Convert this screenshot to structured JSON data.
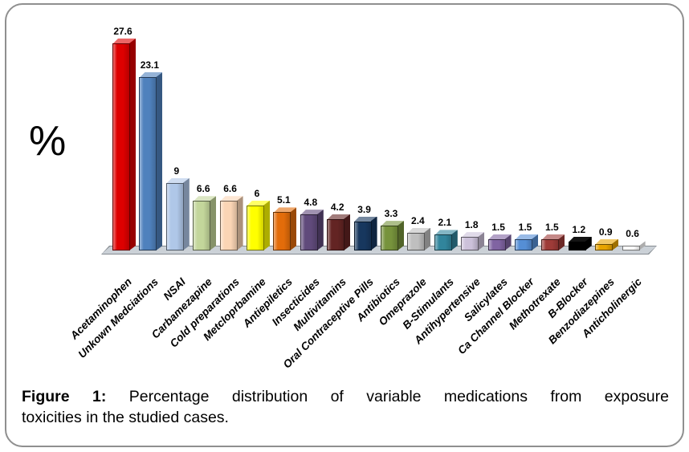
{
  "figure": {
    "percent_symbol": "%",
    "caption": {
      "label": "Figure 1:",
      "line1": "Percentage distribution of variable medications from exposure",
      "line2": "toxicities in the studied cases."
    }
  },
  "chart_data": {
    "type": "bar",
    "style": "3d",
    "title": "",
    "xlabel": "",
    "ylabel": "%",
    "ylim": [
      0,
      30
    ],
    "grid": false,
    "legend": false,
    "data_labels": true,
    "categories": [
      "Acetaminophen",
      "Unkown Medciations",
      "NSAI",
      "Carbamezapine",
      "Cold preparations",
      "Metcloprbamine",
      "Antiepiletics",
      "Insecticides",
      "Multivitamins",
      "Oral Contraceptive Pills",
      "Antibiotics",
      "Omeprazole",
      "B-Stimulants",
      "Antihypertensive",
      "Salicylates",
      "Ca Channel Blocker",
      "Methotrexate",
      "B-Blocker",
      "Benzodiazepines",
      "Anticholinergic"
    ],
    "values": [
      27.6,
      23.1,
      9,
      6.6,
      6.6,
      6,
      5.1,
      4.8,
      4.2,
      3.9,
      3.3,
      2.4,
      2.1,
      1.8,
      1.5,
      1.5,
      1.5,
      1.2,
      0.9,
      0.6
    ],
    "value_labels": [
      "27.6",
      "23.1",
      "9",
      "6.6",
      "6.6",
      "6",
      "5.1",
      "4.8",
      "4.2",
      "3.9",
      "3.3",
      "2.4",
      "2.1",
      "1.8",
      "1.5",
      "1.5",
      "1.5",
      "1.2",
      "0.9",
      "0.6"
    ],
    "bar_colors": [
      "#DE0000",
      "#4F81BD",
      "#AFC7E8",
      "#C3D69B",
      "#FBD5B5",
      "#FFFF00",
      "#E36C0A",
      "#604A7B",
      "#632423",
      "#17375E",
      "#77933C",
      "#BFBFBF",
      "#31859C",
      "#CCC1DA",
      "#8064A2",
      "#558ED5",
      "#9E3B38",
      "#000000",
      "#E8A400",
      "#FFFFFF"
    ],
    "bar_color_overrides": {
      "17": {
        "gradient": false,
        "top": "#141414",
        "side": "#000000",
        "border": "#000000"
      }
    },
    "floor_color": "#CBD1D7",
    "floor_edge_color": "#858B91",
    "background_color": "#FFFFFF"
  }
}
